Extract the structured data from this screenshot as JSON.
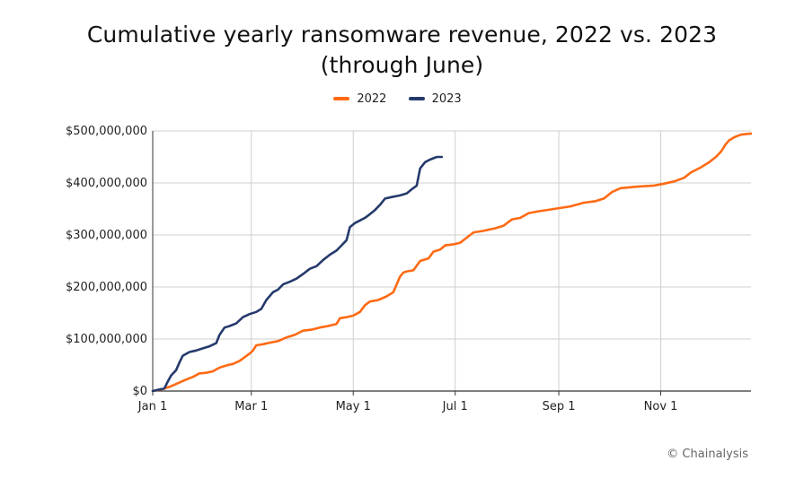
{
  "title": "Cumulative yearly ransomware revenue, 2022 vs. 2023 (through June)",
  "credit": "© Chainalysis",
  "colors": {
    "s2022": "#ff6a13",
    "s2023": "#253a6c",
    "grid": "#cfcfcf",
    "axis": "#333333"
  },
  "chart_data": {
    "type": "line",
    "title": "Cumulative yearly ransomware revenue, 2022 vs. 2023 (through June)",
    "xlabel": "",
    "ylabel": "",
    "x_ticks": [
      "Jan 1",
      "Mar 1",
      "May 1",
      "Jul 1",
      "Sep 1",
      "Nov 1"
    ],
    "x_tick_days": [
      0,
      59,
      120,
      181,
      243,
      304
    ],
    "xlim_days": [
      0,
      348
    ],
    "y_ticks": [
      "$0",
      "$100,000,000",
      "$200,000,000",
      "$300,000,000",
      "$400,000,000",
      "$500,000,000"
    ],
    "y_tick_values": [
      0,
      100000000,
      200000000,
      300000000,
      400000000,
      500000000
    ],
    "ylim": [
      0,
      500000000
    ],
    "grid": true,
    "legend_position": "top-center",
    "series": [
      {
        "name": "2022",
        "color": "#ff6a13",
        "points": [
          [
            0,
            0
          ],
          [
            5,
            3000000
          ],
          [
            10,
            8000000
          ],
          [
            15,
            15000000
          ],
          [
            20,
            22000000
          ],
          [
            24,
            27000000
          ],
          [
            28,
            34000000
          ],
          [
            32,
            35000000
          ],
          [
            36,
            38000000
          ],
          [
            40,
            45000000
          ],
          [
            45,
            50000000
          ],
          [
            48,
            52000000
          ],
          [
            52,
            58000000
          ],
          [
            55,
            65000000
          ],
          [
            58,
            72000000
          ],
          [
            60,
            78000000
          ],
          [
            62,
            88000000
          ],
          [
            66,
            90000000
          ],
          [
            70,
            93000000
          ],
          [
            75,
            96000000
          ],
          [
            80,
            103000000
          ],
          [
            85,
            108000000
          ],
          [
            90,
            116000000
          ],
          [
            95,
            118000000
          ],
          [
            100,
            122000000
          ],
          [
            105,
            125000000
          ],
          [
            110,
            129000000
          ],
          [
            112,
            140000000
          ],
          [
            116,
            142000000
          ],
          [
            120,
            145000000
          ],
          [
            124,
            152000000
          ],
          [
            127,
            165000000
          ],
          [
            130,
            172000000
          ],
          [
            135,
            175000000
          ],
          [
            140,
            182000000
          ],
          [
            144,
            190000000
          ],
          [
            146,
            205000000
          ],
          [
            148,
            220000000
          ],
          [
            150,
            228000000
          ],
          [
            152,
            230000000
          ],
          [
            156,
            232000000
          ],
          [
            160,
            250000000
          ],
          [
            165,
            255000000
          ],
          [
            168,
            268000000
          ],
          [
            172,
            272000000
          ],
          [
            175,
            280000000
          ],
          [
            180,
            282000000
          ],
          [
            184,
            285000000
          ],
          [
            188,
            295000000
          ],
          [
            192,
            305000000
          ],
          [
            198,
            308000000
          ],
          [
            205,
            313000000
          ],
          [
            210,
            318000000
          ],
          [
            215,
            330000000
          ],
          [
            220,
            333000000
          ],
          [
            225,
            342000000
          ],
          [
            230,
            345000000
          ],
          [
            240,
            350000000
          ],
          [
            250,
            355000000
          ],
          [
            258,
            362000000
          ],
          [
            265,
            365000000
          ],
          [
            270,
            370000000
          ],
          [
            275,
            383000000
          ],
          [
            280,
            390000000
          ],
          [
            290,
            393000000
          ],
          [
            300,
            395000000
          ],
          [
            305,
            398000000
          ],
          [
            312,
            403000000
          ],
          [
            318,
            410000000
          ],
          [
            322,
            420000000
          ],
          [
            328,
            430000000
          ],
          [
            333,
            440000000
          ],
          [
            337,
            450000000
          ],
          [
            340,
            460000000
          ],
          [
            343,
            475000000
          ],
          [
            345,
            482000000
          ],
          [
            348,
            488000000
          ],
          [
            352,
            493000000
          ],
          [
            358,
            495000000
          ]
        ]
      },
      {
        "name": "2023",
        "color": "#253a6c",
        "points": [
          [
            0,
            0
          ],
          [
            4,
            3000000
          ],
          [
            7,
            5000000
          ],
          [
            9,
            18000000
          ],
          [
            11,
            30000000
          ],
          [
            14,
            40000000
          ],
          [
            16,
            55000000
          ],
          [
            18,
            68000000
          ],
          [
            22,
            75000000
          ],
          [
            26,
            78000000
          ],
          [
            30,
            82000000
          ],
          [
            34,
            86000000
          ],
          [
            38,
            92000000
          ],
          [
            40,
            108000000
          ],
          [
            43,
            122000000
          ],
          [
            46,
            125000000
          ],
          [
            50,
            130000000
          ],
          [
            54,
            142000000
          ],
          [
            58,
            148000000
          ],
          [
            62,
            152000000
          ],
          [
            65,
            158000000
          ],
          [
            68,
            175000000
          ],
          [
            72,
            190000000
          ],
          [
            75,
            195000000
          ],
          [
            78,
            205000000
          ],
          [
            82,
            210000000
          ],
          [
            86,
            216000000
          ],
          [
            90,
            225000000
          ],
          [
            94,
            235000000
          ],
          [
            98,
            240000000
          ],
          [
            102,
            252000000
          ],
          [
            106,
            262000000
          ],
          [
            110,
            270000000
          ],
          [
            113,
            280000000
          ],
          [
            116,
            290000000
          ],
          [
            118,
            315000000
          ],
          [
            121,
            323000000
          ],
          [
            124,
            328000000
          ],
          [
            127,
            333000000
          ],
          [
            130,
            340000000
          ],
          [
            133,
            348000000
          ],
          [
            136,
            358000000
          ],
          [
            139,
            370000000
          ],
          [
            143,
            373000000
          ],
          [
            148,
            376000000
          ],
          [
            152,
            380000000
          ],
          [
            155,
            388000000
          ],
          [
            158,
            395000000
          ],
          [
            160,
            428000000
          ],
          [
            163,
            440000000
          ],
          [
            166,
            445000000
          ],
          [
            170,
            450000000
          ],
          [
            173,
            450000000
          ]
        ]
      }
    ]
  }
}
